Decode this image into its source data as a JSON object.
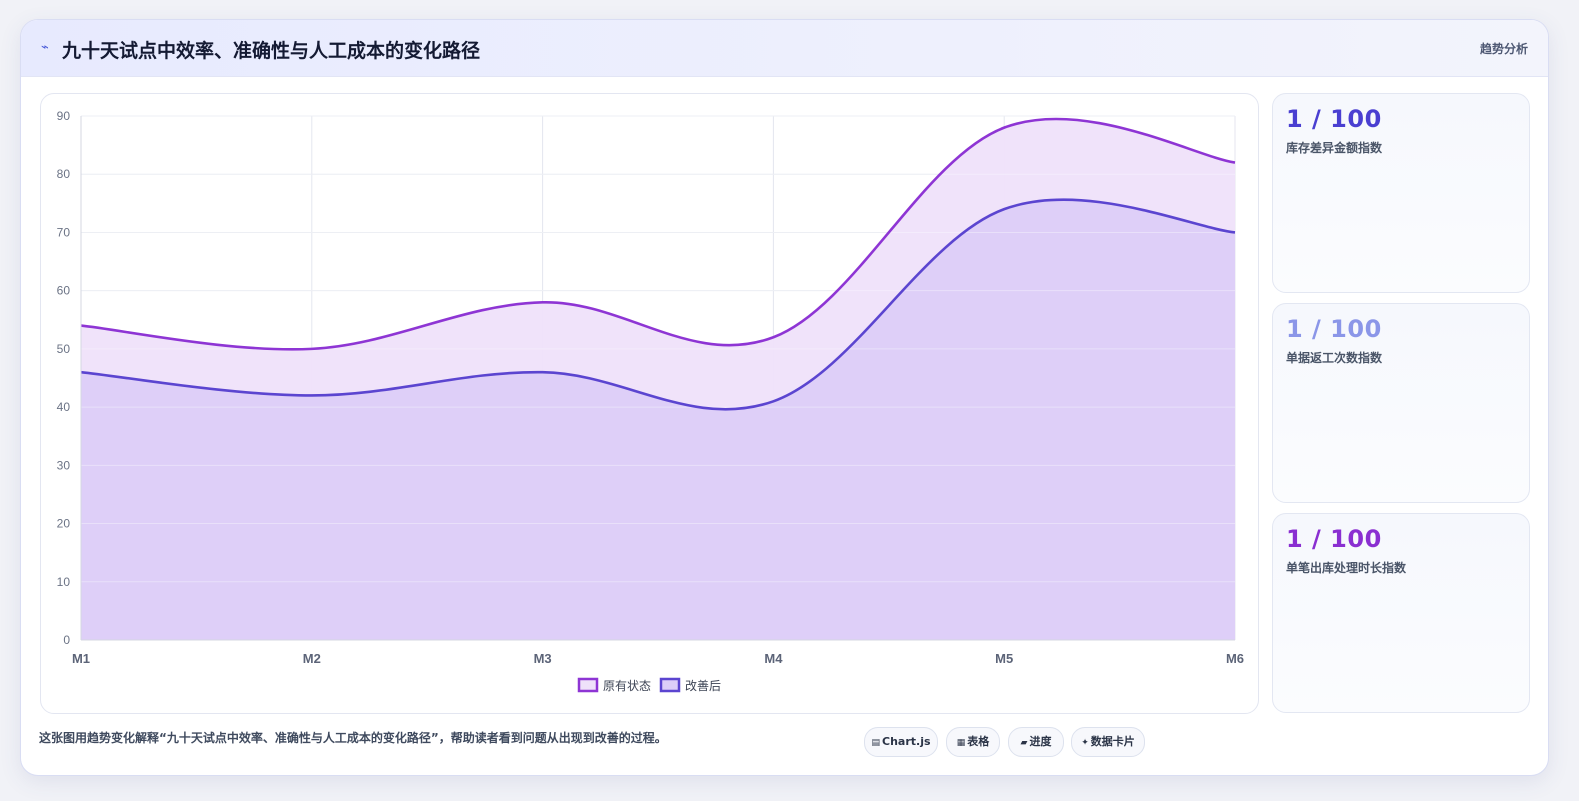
{
  "header": {
    "icon": "trend-icon",
    "icon_glyph": "⌁",
    "title": "九十天试点中效率、准确性与人工成本的变化路径",
    "tag": "趋势分析"
  },
  "kpis": [
    {
      "value": "1 / 100",
      "label": "库存差异金额指数",
      "color": "#4a3fd1"
    },
    {
      "value": "1 / 100",
      "label": "单据返工次数指数",
      "color": "#8b96e8"
    },
    {
      "value": "1 / 100",
      "label": "单笔出库处理时长指数",
      "color": "#8a2fd1"
    }
  ],
  "footer": {
    "text": "这张图用趋势变化解释“九十天试点中效率、准确性与人工成本的变化路径”，帮助读者看到问题从出现到改善的过程。",
    "chips": [
      {
        "icon": "chart-icon",
        "glyph": "▤",
        "label": "Chart.js"
      },
      {
        "icon": "table-icon",
        "glyph": "▦",
        "label": "表格"
      },
      {
        "icon": "progress-icon",
        "glyph": "▰",
        "label": "进度"
      },
      {
        "icon": "card-icon",
        "glyph": "✦",
        "label": "数据卡片"
      }
    ]
  },
  "chart_data": {
    "type": "area",
    "categories": [
      "M1",
      "M2",
      "M3",
      "M4",
      "M5",
      "M6"
    ],
    "ylim": [
      0,
      90
    ],
    "yticks": [
      0,
      10,
      20,
      30,
      40,
      50,
      60,
      70,
      80,
      90
    ],
    "grid": true,
    "legend_position": "bottom",
    "series": [
      {
        "name": "原有状态",
        "values": [
          54,
          50,
          58,
          52,
          88,
          82
        ],
        "color": "#8e35d4",
        "fill": "#efe1fa"
      },
      {
        "name": "改善后",
        "values": [
          46,
          42,
          46,
          41,
          74,
          70
        ],
        "color": "#5b45d0",
        "fill": "#dccef8"
      }
    ]
  }
}
